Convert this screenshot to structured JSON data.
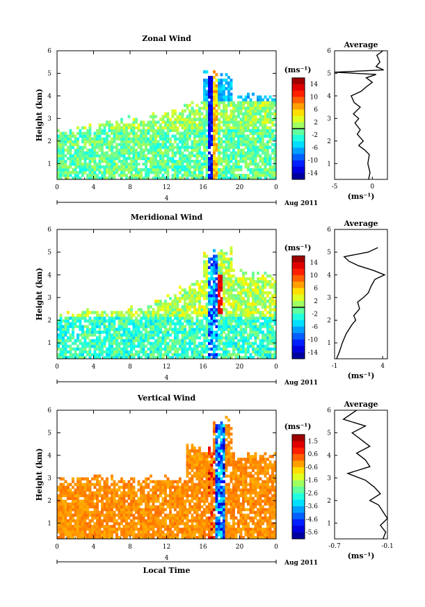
{
  "chart_data": [
    {
      "type": "heatmap",
      "title": "Zonal Wind",
      "ylabel": "Height (km)",
      "xlabel": "",
      "xlim": [
        0,
        24
      ],
      "ylim": [
        0.3,
        6
      ],
      "x_ticks": [
        "0",
        "4",
        "8",
        "12",
        "16",
        "20",
        "0"
      ],
      "y_ticks": [
        "1",
        "2",
        "3",
        "4",
        "5",
        "6"
      ],
      "date_label": "4",
      "date_suffix": "Aug 2011",
      "colorbar": {
        "unit": "(ms⁻¹)",
        "ticks": [
          "14",
          "10",
          "6",
          "2",
          "-2",
          "-6",
          "-10",
          "-14"
        ],
        "range": [
          -15,
          15
        ]
      },
      "average_profile": {
        "title": "Average",
        "xlabel": "(ms⁻¹)",
        "x_ticks": [
          "-5",
          "0"
        ],
        "xlim": [
          -5,
          2
        ],
        "y_ticks": [
          "1",
          "2",
          "3",
          "4",
          "5",
          "6"
        ],
        "height": [
          0.3,
          0.6,
          1.0,
          1.4,
          1.6,
          1.8,
          2.0,
          2.3,
          2.5,
          2.8,
          3.0,
          3.2,
          3.5,
          3.7,
          4.0,
          4.2,
          4.4,
          4.6,
          4.8,
          4.95,
          5.05,
          5.15,
          5.3,
          5.5,
          5.8,
          6.0
        ],
        "value": [
          -0.5,
          -0.3,
          -0.6,
          -0.4,
          -1.0,
          -1.8,
          -1.2,
          -2.0,
          -1.6,
          -2.3,
          -1.8,
          -2.5,
          -1.6,
          -2.4,
          -2.8,
          -1.5,
          -0.8,
          0.0,
          -0.8,
          0.5,
          -5.0,
          1.5,
          0.5,
          1.0,
          0.6,
          1.4
        ]
      }
    },
    {
      "type": "heatmap",
      "title": "Meridional Wind",
      "ylabel": "Height (km)",
      "xlabel": "",
      "xlim": [
        0,
        24
      ],
      "ylim": [
        0.3,
        6
      ],
      "x_ticks": [
        "0",
        "4",
        "8",
        "12",
        "16",
        "20",
        "0"
      ],
      "y_ticks": [
        "1",
        "2",
        "3",
        "4",
        "5",
        "6"
      ],
      "date_label": "4",
      "date_suffix": "Aug 2011",
      "colorbar": {
        "unit": "(ms⁻¹)",
        "ticks": [
          "14",
          "10",
          "6",
          "2",
          "-2",
          "-6",
          "-10",
          "-14"
        ],
        "range": [
          -15,
          15
        ]
      },
      "average_profile": {
        "title": "Average",
        "xlabel": "(ms⁻¹)",
        "x_ticks": [
          "-1",
          "4"
        ],
        "xlim": [
          -1,
          4.5
        ],
        "y_ticks": [
          "1",
          "2",
          "3",
          "4",
          "5",
          "6"
        ],
        "height": [
          0.3,
          0.6,
          1.0,
          1.4,
          1.8,
          2.0,
          2.2,
          2.5,
          2.8,
          3.0,
          3.2,
          3.5,
          3.8,
          4.0,
          4.2,
          4.4,
          4.6,
          4.8,
          5.0,
          5.2
        ],
        "value": [
          -0.8,
          -0.5,
          -0.2,
          0.2,
          0.8,
          1.2,
          1.0,
          1.6,
          1.4,
          2.0,
          2.5,
          2.8,
          3.2,
          4.2,
          3.0,
          1.5,
          0.5,
          0.0,
          2.5,
          3.5
        ]
      }
    },
    {
      "type": "heatmap",
      "title": "Vertical Wind",
      "ylabel": "Height (km)",
      "xlabel": "Local Time",
      "xlim": [
        0,
        24
      ],
      "ylim": [
        0.3,
        6
      ],
      "x_ticks": [
        "0",
        "4",
        "8",
        "12",
        "16",
        "20",
        "0"
      ],
      "y_ticks": [
        "1",
        "2",
        "3",
        "4",
        "5",
        "6"
      ],
      "date_label": "4",
      "date_suffix": "Aug 2011",
      "colorbar": {
        "unit": "(ms⁻¹)",
        "ticks": [
          "1.5",
          "0.6",
          "-0.6",
          "-1.6",
          "-2.6",
          "-3.6",
          "-4.6",
          "-5.6"
        ],
        "range": [
          -6,
          2
        ]
      },
      "average_profile": {
        "title": "Average",
        "xlabel": "(ms⁻¹)",
        "x_ticks": [
          "-0.7",
          "-0.1"
        ],
        "xlim": [
          -0.7,
          -0.1
        ],
        "y_ticks": [
          "1",
          "2",
          "3",
          "4",
          "5",
          "6"
        ],
        "height": [
          0.3,
          0.6,
          0.9,
          1.2,
          1.5,
          1.8,
          2.0,
          2.3,
          2.6,
          2.9,
          3.2,
          3.5,
          3.8,
          4.1,
          4.4,
          4.7,
          5.0,
          5.3,
          5.6,
          6.0
        ],
        "value": [
          -0.15,
          -0.12,
          -0.18,
          -0.1,
          -0.15,
          -0.2,
          -0.3,
          -0.18,
          -0.25,
          -0.35,
          -0.55,
          -0.3,
          -0.35,
          -0.45,
          -0.3,
          -0.4,
          -0.5,
          -0.35,
          -0.6,
          -0.45
        ]
      }
    }
  ]
}
